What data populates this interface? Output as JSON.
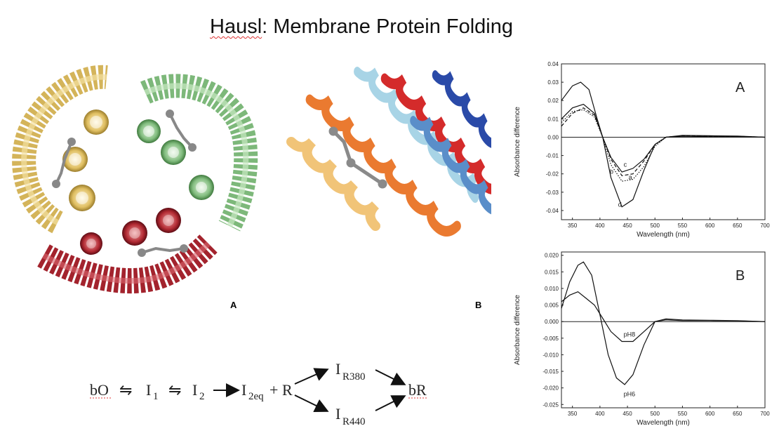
{
  "title": {
    "prefix": "Hausl",
    "rest": ": Membrane Protein Folding"
  },
  "panel_labels": {
    "left_a": "A",
    "left_b": "B"
  },
  "equation": {
    "bO": "bO",
    "arrow_eq": "⇋",
    "I": "I",
    "sub1": "1",
    "sub2": "2",
    "sub2eq": "2eq",
    "plus": "+",
    "R": "R",
    "subR380": "R380",
    "subR440": "R440",
    "bR": "bR"
  },
  "colors": {
    "helix_yellow": "#e8c86a",
    "helix_green": "#8cc48a",
    "helix_red": "#b52a34",
    "ligand": "#8c8c8c"
  },
  "chart_data": [
    {
      "type": "line",
      "panel_label": "A",
      "xlabel": "Wavelength (nm)",
      "ylabel": "Absorbance difference",
      "xlim": [
        330,
        700
      ],
      "ylim": [
        -0.045,
        0.04
      ],
      "xticks": [
        350,
        400,
        450,
        500,
        550,
        600,
        650,
        700
      ],
      "yticks": [
        0.04,
        0.03,
        0.02,
        0.01,
        0.0,
        -0.01,
        -0.02,
        -0.03,
        -0.04
      ],
      "ytick_labels": [
        "0.04",
        "0.03",
        "0.02",
        "0.01",
        "0.00",
        "-0.01",
        "-0.02",
        "-0.03",
        "-0.04"
      ],
      "series": [
        {
          "name": "a",
          "style": "dotted",
          "x": [
            330,
            350,
            370,
            390,
            405,
            420,
            440,
            460,
            480,
            500,
            520,
            550,
            600,
            650,
            700
          ],
          "y": [
            0.008,
            0.014,
            0.015,
            0.011,
            0.0,
            -0.015,
            -0.024,
            -0.023,
            -0.016,
            -0.005,
            0.0,
            0.0008,
            0.0005,
            0.0005,
            0.0
          ]
        },
        {
          "name": "b",
          "style": "dashed",
          "x": [
            330,
            350,
            370,
            390,
            405,
            420,
            440,
            460,
            480,
            500,
            520,
            550,
            600,
            650,
            700
          ],
          "y": [
            0.006,
            0.013,
            0.016,
            0.012,
            0.0,
            -0.012,
            -0.021,
            -0.02,
            -0.013,
            -0.004,
            0.0,
            0.0008,
            0.0005,
            0.0005,
            0.0
          ]
        },
        {
          "name": "c",
          "style": "solid",
          "x": [
            330,
            350,
            370,
            390,
            405,
            420,
            440,
            460,
            480,
            500,
            520,
            550,
            600,
            650,
            700
          ],
          "y": [
            0.01,
            0.016,
            0.018,
            0.013,
            0.0,
            -0.011,
            -0.019,
            -0.017,
            -0.012,
            -0.004,
            0.0,
            0.001,
            0.0008,
            0.0006,
            0.0
          ]
        },
        {
          "name": "d",
          "style": "solid",
          "x": [
            330,
            350,
            365,
            380,
            395,
            405,
            420,
            440,
            460,
            480,
            500,
            520,
            550,
            600,
            650,
            700
          ],
          "y": [
            0.02,
            0.028,
            0.03,
            0.026,
            0.01,
            0.0,
            -0.022,
            -0.038,
            -0.034,
            -0.018,
            -0.004,
            0.0,
            0.0005,
            0.0003,
            0.0003,
            0.0
          ]
        }
      ],
      "curve_labels": [
        {
          "text": "c",
          "x": 443,
          "y": -0.016
        },
        {
          "text": "b",
          "x": 418,
          "y": -0.02
        },
        {
          "text": "a",
          "x": 452,
          "y": -0.023
        },
        {
          "text": "d",
          "x": 433,
          "y": -0.038
        }
      ]
    },
    {
      "type": "line",
      "panel_label": "B",
      "xlabel": "Wavelength (nm)",
      "ylabel": "Absorbance difference",
      "xlim": [
        330,
        700
      ],
      "ylim": [
        -0.026,
        0.021
      ],
      "xticks": [
        350,
        400,
        450,
        500,
        550,
        600,
        650,
        700
      ],
      "yticks": [
        0.02,
        0.015,
        0.01,
        0.005,
        0.0,
        -0.005,
        -0.01,
        -0.015,
        -0.02,
        -0.025
      ],
      "ytick_labels": [
        "0.020",
        "0.015",
        "0.010",
        "0.005",
        "0.000",
        "-0.005",
        "-0.010",
        "-0.015",
        "-0.020",
        "-0.025"
      ],
      "series": [
        {
          "name": "pH8",
          "style": "solid",
          "x": [
            330,
            345,
            360,
            375,
            390,
            405,
            420,
            440,
            460,
            480,
            500,
            520,
            550,
            600,
            650,
            700
          ],
          "y": [
            0.006,
            0.008,
            0.009,
            0.007,
            0.005,
            0.001,
            -0.003,
            -0.006,
            -0.006,
            -0.003,
            0.0,
            0.0008,
            0.0005,
            0.0004,
            0.0003,
            0.0
          ]
        },
        {
          "name": "pH6",
          "style": "solid",
          "x": [
            330,
            345,
            360,
            370,
            385,
            400,
            415,
            430,
            445,
            460,
            480,
            500,
            520,
            550,
            600,
            650,
            700
          ],
          "y": [
            0.004,
            0.012,
            0.017,
            0.018,
            0.014,
            0.002,
            -0.01,
            -0.017,
            -0.019,
            -0.016,
            -0.007,
            0.0,
            0.0005,
            0.0003,
            0.0003,
            0.0002,
            0.0
          ]
        }
      ],
      "curve_labels": [
        {
          "text": "pH8",
          "x": 443,
          "y": -0.0045
        },
        {
          "text": "pH6",
          "x": 443,
          "y": -0.0225
        }
      ]
    }
  ]
}
